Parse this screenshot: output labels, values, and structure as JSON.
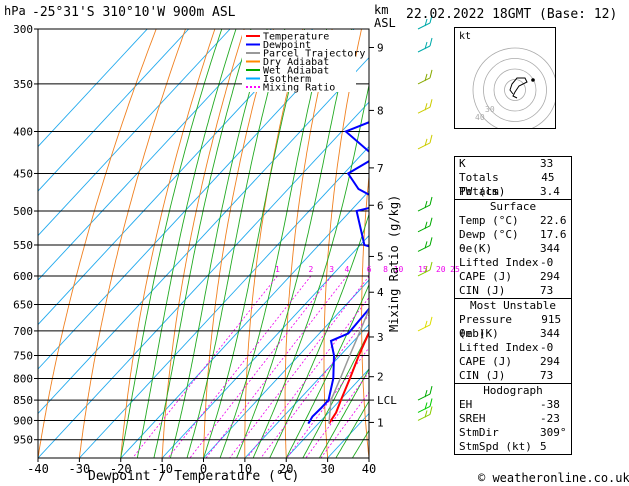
{
  "header": {
    "hpa": "hPa",
    "location": "-25°31'S 310°10'W 900m ASL",
    "km": "km",
    "asl": "ASL",
    "datetime": "22.02.2022 18GMT (Base: 12)"
  },
  "legend": [
    {
      "label": "Temperature",
      "color": "#ff0000"
    },
    {
      "label": "Dewpoint",
      "color": "#0000ff"
    },
    {
      "label": "Parcel Trajectory",
      "color": "#999999"
    },
    {
      "label": "Dry Adiabat",
      "color": "#ff8800"
    },
    {
      "label": "Wet Adiabat",
      "color": "#00aa00"
    },
    {
      "label": "Isotherm",
      "color": "#00aaff"
    },
    {
      "label": "Mixing Ratio",
      "color": "#ff00ff"
    }
  ],
  "axes": {
    "xlabel": "Dewpoint / Temperature (°C)",
    "ylabel": "Mixing Ratio (g/kg)",
    "pressure_ticks": [
      "300",
      "350",
      "400",
      "450",
      "500",
      "550",
      "600",
      "650",
      "700",
      "750",
      "800",
      "850",
      "900",
      "950"
    ],
    "temp_ticks": [
      "-40",
      "-30",
      "-20",
      "-10",
      "0",
      "10",
      "20",
      "30",
      "40"
    ],
    "km_ticks": [
      {
        "p": 316,
        "label": "9"
      },
      {
        "p": 377,
        "label": "8"
      },
      {
        "p": 443,
        "label": "7"
      },
      {
        "p": 492,
        "label": "6"
      },
      {
        "p": 568,
        "label": "5"
      },
      {
        "p": 628,
        "label": "4"
      },
      {
        "p": 712,
        "label": "3"
      },
      {
        "p": 796,
        "label": "2"
      },
      {
        "p": 850,
        "label": "LCL"
      },
      {
        "p": 905,
        "label": "1"
      }
    ],
    "mixing_ratio_labels": [
      "1",
      "2",
      "3",
      "4",
      "6",
      "8",
      "10",
      "15",
      "20",
      "25"
    ]
  },
  "hodograph": {
    "unit": "kt",
    "rings": [
      "40",
      "30"
    ]
  },
  "chart_data": {
    "type": "line",
    "title": "-25°31'S 310°10'W 900m ASL",
    "xlabel": "Dewpoint / Temperature (°C)",
    "ylabel": "hPa",
    "xlim": [
      -40,
      40
    ],
    "ylim": [
      1000,
      300
    ],
    "series": [
      {
        "name": "Temperature",
        "color": "#ff0000",
        "points": [
          [
            908,
            22.6
          ],
          [
            880,
            21.8
          ],
          [
            850,
            20.2
          ],
          [
            800,
            17.5
          ],
          [
            750,
            14.5
          ],
          [
            700,
            11.6
          ],
          [
            650,
            8.0
          ],
          [
            600,
            3.8
          ],
          [
            560,
            -0.6
          ],
          [
            550,
            -1.2
          ],
          [
            520,
            -3.8
          ],
          [
            500,
            -5.4
          ],
          [
            450,
            -10.2
          ],
          [
            400,
            -16.0
          ],
          [
            350,
            -23.5
          ],
          [
            300,
            -33.0
          ]
        ]
      },
      {
        "name": "Dewpoint",
        "color": "#0000ff",
        "points": [
          [
            908,
            17.6
          ],
          [
            890,
            17.0
          ],
          [
            870,
            17.2
          ],
          [
            850,
            17.2
          ],
          [
            800,
            13.5
          ],
          [
            750,
            8.5
          ],
          [
            720,
            4.5
          ],
          [
            705,
            7.0
          ],
          [
            650,
            6.4
          ],
          [
            600,
            3.0
          ],
          [
            560,
            -2.0
          ],
          [
            550,
            -9.0
          ],
          [
            500,
            -18.5
          ],
          [
            490,
            -13.0
          ],
          [
            470,
            -23.0
          ],
          [
            450,
            -29.0
          ],
          [
            430,
            -26.0
          ],
          [
            400,
            -39.0
          ],
          [
            380,
            -32.0
          ],
          [
            360,
            -41.0
          ],
          [
            340,
            -35.0
          ],
          [
            320,
            -44.0
          ],
          [
            300,
            -40.0
          ]
        ]
      },
      {
        "name": "Parcel Trajectory",
        "color": "#999999",
        "points": [
          [
            908,
            22.6
          ],
          [
            880,
            20.3
          ],
          [
            850,
            17.8
          ],
          [
            800,
            15.2
          ],
          [
            750,
            12.3
          ],
          [
            700,
            9.3
          ],
          [
            650,
            6.0
          ],
          [
            600,
            2.4
          ],
          [
            550,
            -1.7
          ],
          [
            500,
            -6.5
          ],
          [
            450,
            -11.8
          ],
          [
            400,
            -18.0
          ],
          [
            350,
            -25.5
          ],
          [
            300,
            -34.5
          ]
        ]
      }
    ]
  },
  "indices": {
    "top": [
      {
        "label": "K",
        "value": "33"
      },
      {
        "label": "Totals Totals",
        "value": "45"
      },
      {
        "label": "PW (cm)",
        "value": "3.4"
      }
    ],
    "surface": {
      "title": "Surface",
      "rows": [
        {
          "label": "Temp (°C)",
          "value": "22.6"
        },
        {
          "label": "Dewp (°C)",
          "value": "17.6"
        },
        {
          "label": "θe(K)",
          "value": "344"
        },
        {
          "label": "Lifted Index",
          "value": "-0"
        },
        {
          "label": "CAPE (J)",
          "value": "294"
        },
        {
          "label": "CIN (J)",
          "value": "73"
        }
      ]
    },
    "most_unstable": {
      "title": "Most Unstable",
      "rows": [
        {
          "label": "Pressure (mb)",
          "value": "915"
        },
        {
          "label": "θe (K)",
          "value": "344"
        },
        {
          "label": "Lifted Index",
          "value": "-0"
        },
        {
          "label": "CAPE (J)",
          "value": "294"
        },
        {
          "label": "CIN (J)",
          "value": "73"
        }
      ]
    },
    "hodograph": {
      "title": "Hodograph",
      "rows": [
        {
          "label": "EH",
          "value": "-38"
        },
        {
          "label": "SREH",
          "value": "-23"
        },
        {
          "label": "StmDir",
          "value": "309°"
        },
        {
          "label": "StmSpd (kt)",
          "value": "5"
        }
      ]
    }
  },
  "footer": "© weatheronline.co.uk"
}
